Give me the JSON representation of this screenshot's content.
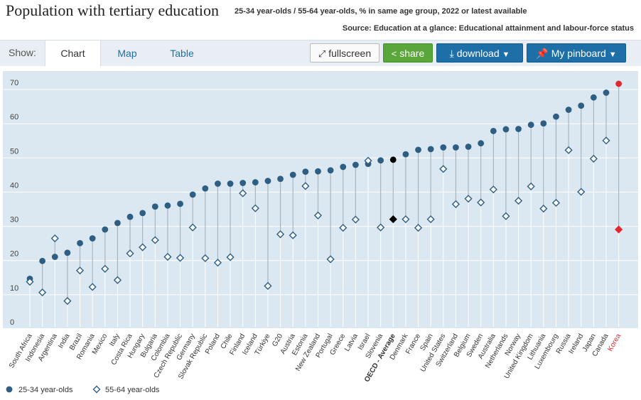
{
  "header": {
    "title": "Population with tertiary education",
    "subtitle": "25-34 year-olds / 55-64 year-olds, % in same age group, 2022 or latest available",
    "source": "Source: Education at a glance: Educational attainment and labour-force status"
  },
  "toolbar": {
    "show_label": "Show:",
    "tabs": [
      "Chart",
      "Map",
      "Table"
    ],
    "fullscreen_label": "fullscreen",
    "share_label": "share",
    "download_label": "download",
    "pinboard_label": "My pinboard"
  },
  "colors": {
    "plot_bg": "#dbe8f1",
    "series_25_34": "#2e5e82",
    "series_55_64": "#2e5e82",
    "highlight": "#e0282e",
    "average": "#000000",
    "connector": "#a5b4c1"
  },
  "chart_data": {
    "type": "scatter",
    "title": "Population with tertiary education",
    "ylim": [
      0,
      70
    ],
    "yticks": [
      0,
      10,
      20,
      30,
      40,
      50,
      60,
      70
    ],
    "grid": true,
    "legend_position": "bottom-left",
    "categories": [
      "South Africa",
      "Indonesia",
      "Argentina",
      "India",
      "Brazil",
      "Romania",
      "Mexico",
      "Italy",
      "Costa Rica",
      "Hungary",
      "Bulgaria",
      "Colombia",
      "Czech Republic",
      "Germany",
      "Slovak Republic",
      "Poland",
      "Chile",
      "Finland",
      "Iceland",
      "Türkiye",
      "G20",
      "Austria",
      "Estonia",
      "New Zealand",
      "Portugal",
      "Greece",
      "Latvia",
      "Israel",
      "Slovenia",
      "OECD - Average",
      "Denmark",
      "France",
      "Spain",
      "United States",
      "Switzerland",
      "Belgium",
      "Sweden",
      "Australia",
      "Netherlands",
      "Norway",
      "United Kingdom",
      "Lithuania",
      "Luxembourg",
      "Russia",
      "Ireland",
      "Japan",
      "Canada",
      "Korea"
    ],
    "average_category": "OECD - Average",
    "highlight_category": "Korea",
    "series": [
      {
        "name": "25-34 year-olds",
        "marker": "circle",
        "values": [
          12.6,
          17.8,
          19.0,
          20.2,
          23.0,
          24.4,
          27.0,
          28.9,
          30.7,
          31.8,
          33.7,
          34.0,
          34.5,
          37.2,
          39.0,
          40.4,
          40.4,
          40.6,
          40.8,
          41.2,
          41.8,
          43.0,
          43.9,
          44.0,
          44.3,
          45.3,
          45.9,
          46.2,
          47.2,
          47.4,
          49.0,
          50.3,
          50.5,
          51.0,
          51.0,
          51.2,
          52.2,
          55.8,
          56.3,
          56.4,
          57.6,
          58.0,
          60.0,
          62.0,
          63.2,
          65.6,
          67.0,
          69.6
        ]
      },
      {
        "name": "55-64 year-olds",
        "marker": "diamond",
        "values": [
          11.7,
          8.6,
          24.4,
          6.1,
          15.0,
          10.2,
          15.5,
          12.2,
          20.0,
          21.8,
          23.9,
          19.0,
          18.7,
          27.6,
          18.6,
          17.3,
          18.9,
          37.6,
          33.2,
          10.5,
          25.6,
          25.3,
          39.7,
          31.1,
          18.3,
          27.5,
          29.9,
          47.1,
          27.6,
          30.0,
          30.0,
          27.5,
          30.0,
          44.7,
          34.4,
          36.0,
          34.9,
          38.7,
          30.9,
          35.4,
          39.6,
          33.1,
          34.8,
          50.2,
          38.0,
          47.7,
          53.0,
          27.0
        ]
      }
    ]
  }
}
